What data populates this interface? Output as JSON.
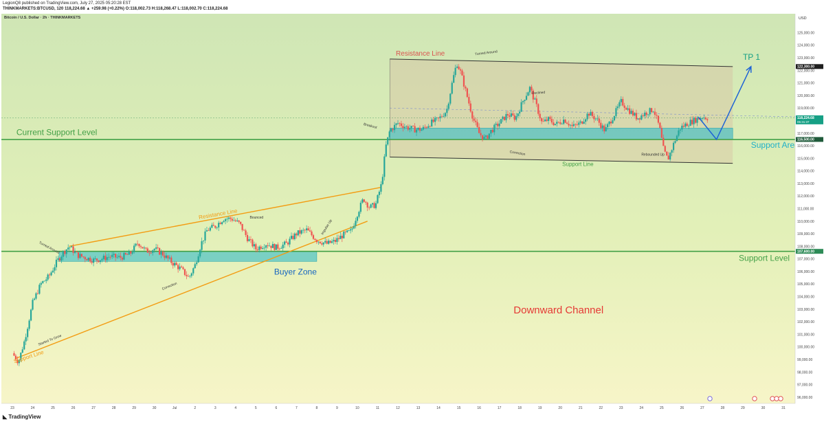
{
  "header": {
    "published": "LegionQ8 published on TradingView.com, July 27, 2025 05:20:28 EST",
    "symbol_line": "THINKMARKETS:BTCUSD, 120  118,224.68 ▲ +259.98 (+0.22%) O:118,002.73 H:118,268.47 L:118,002.70 C:118,224.68",
    "chart_title": "Bitcoin / U.S. Dollar · 2h · THINKMARKETS",
    "currency": "USD"
  },
  "footer": {
    "logo_text": "TradingView"
  },
  "chart_data": {
    "type": "candlestick",
    "title": "Bitcoin / U.S. Dollar · 2h · THINKMARKETS",
    "ylim": [
      95500,
      126500
    ],
    "y_ticks": [
      "125,000.00",
      "124,000.00",
      "123,000.00",
      "122,000.00",
      "121,000.00",
      "120,000.00",
      "119,000.00",
      "118,000.00",
      "117,000.00",
      "116,000.00",
      "115,000.00",
      "114,000.00",
      "113,000.00",
      "112,000.00",
      "111,000.00",
      "110,000.00",
      "109,000.00",
      "108,000.00",
      "107,000.00",
      "106,000.00",
      "105,000.00",
      "104,000.00",
      "103,000.00",
      "102,000.00",
      "101,000.00",
      "100,000.00",
      "99,000.00",
      "98,000.00",
      "97,000.00",
      "96,000.00"
    ],
    "x_ticks": [
      "23",
      "24",
      "25",
      "26",
      "27",
      "28",
      "29",
      "30",
      "Jul",
      "2",
      "3",
      "4",
      "5",
      "6",
      "7",
      "8",
      "9",
      "10",
      "11",
      "12",
      "13",
      "14",
      "15",
      "16",
      "17",
      "18",
      "19",
      "20",
      "21",
      "22",
      "23",
      "24",
      "25",
      "26",
      "27",
      "28",
      "29",
      "30",
      "31"
    ],
    "price_path": [
      {
        "d": 0.0,
        "p": 99500
      },
      {
        "d": 0.3,
        "p": 98800
      },
      {
        "d": 0.6,
        "p": 100500
      },
      {
        "d": 1.0,
        "p": 103500
      },
      {
        "d": 1.4,
        "p": 105000
      },
      {
        "d": 1.8,
        "p": 105600
      },
      {
        "d": 2.2,
        "p": 106800
      },
      {
        "d": 2.5,
        "p": 107500
      },
      {
        "d": 2.8,
        "p": 108000
      },
      {
        "d": 3.2,
        "p": 107300
      },
      {
        "d": 3.6,
        "p": 107100
      },
      {
        "d": 4.0,
        "p": 106900
      },
      {
        "d": 4.4,
        "p": 107000
      },
      {
        "d": 4.8,
        "p": 107200
      },
      {
        "d": 5.3,
        "p": 107100
      },
      {
        "d": 5.8,
        "p": 107400
      },
      {
        "d": 6.2,
        "p": 108300
      },
      {
        "d": 6.6,
        "p": 107600
      },
      {
        "d": 7.0,
        "p": 107800
      },
      {
        "d": 7.4,
        "p": 107400
      },
      {
        "d": 7.8,
        "p": 106800
      },
      {
        "d": 8.3,
        "p": 106200
      },
      {
        "d": 8.7,
        "p": 105500
      },
      {
        "d": 9.0,
        "p": 106500
      },
      {
        "d": 9.3,
        "p": 108200
      },
      {
        "d": 9.6,
        "p": 109300
      },
      {
        "d": 10.0,
        "p": 109600
      },
      {
        "d": 10.4,
        "p": 110200
      },
      {
        "d": 10.8,
        "p": 110200
      },
      {
        "d": 11.2,
        "p": 109800
      },
      {
        "d": 11.6,
        "p": 108600
      },
      {
        "d": 12.0,
        "p": 107800
      },
      {
        "d": 12.5,
        "p": 108200
      },
      {
        "d": 13.0,
        "p": 107900
      },
      {
        "d": 13.5,
        "p": 108200
      },
      {
        "d": 14.0,
        "p": 109000
      },
      {
        "d": 14.5,
        "p": 109300
      },
      {
        "d": 15.0,
        "p": 108500
      },
      {
        "d": 15.5,
        "p": 108200
      },
      {
        "d": 15.9,
        "p": 108400
      },
      {
        "d": 16.3,
        "p": 108900
      },
      {
        "d": 16.7,
        "p": 109200
      },
      {
        "d": 17.0,
        "p": 110600
      },
      {
        "d": 17.3,
        "p": 111800
      },
      {
        "d": 17.6,
        "p": 111100
      },
      {
        "d": 17.9,
        "p": 111300
      },
      {
        "d": 18.2,
        "p": 113000
      },
      {
        "d": 18.4,
        "p": 115900
      },
      {
        "d": 18.6,
        "p": 117200
      },
      {
        "d": 19.0,
        "p": 117800
      },
      {
        "d": 19.4,
        "p": 117500
      },
      {
        "d": 19.8,
        "p": 117300
      },
      {
        "d": 20.2,
        "p": 117300
      },
      {
        "d": 20.6,
        "p": 117800
      },
      {
        "d": 21.0,
        "p": 118100
      },
      {
        "d": 21.4,
        "p": 118800
      },
      {
        "d": 21.7,
        "p": 121200
      },
      {
        "d": 21.9,
        "p": 122600
      },
      {
        "d": 22.1,
        "p": 121800
      },
      {
        "d": 22.4,
        "p": 120000
      },
      {
        "d": 22.7,
        "p": 118200
      },
      {
        "d": 23.0,
        "p": 117000
      },
      {
        "d": 23.3,
        "p": 116500
      },
      {
        "d": 23.6,
        "p": 117200
      },
      {
        "d": 24.0,
        "p": 117800
      },
      {
        "d": 24.4,
        "p": 118500
      },
      {
        "d": 24.8,
        "p": 118200
      },
      {
        "d": 25.2,
        "p": 119700
      },
      {
        "d": 25.5,
        "p": 120600
      },
      {
        "d": 25.8,
        "p": 119300
      },
      {
        "d": 26.1,
        "p": 117800
      },
      {
        "d": 26.4,
        "p": 118100
      },
      {
        "d": 26.8,
        "p": 117700
      },
      {
        "d": 27.2,
        "p": 118100
      },
      {
        "d": 27.6,
        "p": 117500
      },
      {
        "d": 28.0,
        "p": 117800
      },
      {
        "d": 28.4,
        "p": 118600
      },
      {
        "d": 28.8,
        "p": 118100
      },
      {
        "d": 29.2,
        "p": 117200
      },
      {
        "d": 29.6,
        "p": 118300
      },
      {
        "d": 30.0,
        "p": 119500
      },
      {
        "d": 30.4,
        "p": 118800
      },
      {
        "d": 30.8,
        "p": 118200
      },
      {
        "d": 31.2,
        "p": 118600
      },
      {
        "d": 31.6,
        "p": 118900
      },
      {
        "d": 31.9,
        "p": 117400
      },
      {
        "d": 32.1,
        "p": 115600
      },
      {
        "d": 32.3,
        "p": 114900
      },
      {
        "d": 32.6,
        "p": 116200
      },
      {
        "d": 32.9,
        "p": 117400
      },
      {
        "d": 33.3,
        "p": 117800
      },
      {
        "d": 33.7,
        "p": 118100
      },
      {
        "d": 34.0,
        "p": 118300
      },
      {
        "d": 34.3,
        "p": 118200
      }
    ],
    "levels": [
      {
        "name": "Current Support Level",
        "value": 116500
      },
      {
        "name": "Support Level",
        "value": 107600
      }
    ],
    "zones": [
      {
        "label": "Buyer Zone",
        "x": [
          2.3,
          15.0
        ],
        "y": [
          106800,
          107600
        ]
      },
      {
        "label": "Support Area",
        "x": [
          18.6,
          35.5
        ],
        "y": [
          116500,
          117400
        ]
      }
    ],
    "channels": [
      {
        "label": "Downward Channel",
        "resistance": [
          [
            18.6,
            122900
          ],
          [
            35.5,
            122300
          ]
        ],
        "support": [
          [
            18.6,
            115100
          ],
          [
            35.5,
            114600
          ]
        ]
      }
    ],
    "ascending_channel": {
      "resistance": [
        [
          2.8,
          108000
        ],
        [
          18.2,
          112700
        ]
      ],
      "support": [
        [
          0.2,
          99100
        ],
        [
          17.5,
          110000
        ]
      ]
    },
    "projection": {
      "label": "TP 1",
      "path": [
        [
          33.8,
          118300
        ],
        [
          34.7,
          116500
        ],
        [
          36.4,
          122300
        ]
      ]
    },
    "price_tags": [
      {
        "text": "122,300.00",
        "value": 122300,
        "bg": "#1f1f1f"
      },
      {
        "text": "118,224.68",
        "value": 118224.68,
        "bg": "#16a085",
        "extra": "05:31:37"
      },
      {
        "text": "116,500.00",
        "value": 116500,
        "bg": "#1f5a3a"
      },
      {
        "text": "107,600.00",
        "value": 107600,
        "bg": "#2e8b57"
      }
    ],
    "annotations": [
      {
        "text": "Resistance Line",
        "color": "#d9534f",
        "size": 10,
        "x": 18.9,
        "y": 123160,
        "rot": 0
      },
      {
        "text": "Turned Around",
        "color": "#333",
        "size": 5,
        "x": 22.8,
        "y": 123200,
        "rot": -7
      },
      {
        "text": "Declined",
        "color": "#333",
        "size": 5,
        "x": 25.6,
        "y": 120100,
        "rot": -4
      },
      {
        "text": "Breakout",
        "color": "#333",
        "size": 5,
        "x": 17.3,
        "y": 117650,
        "rot": 15
      },
      {
        "text": "Correction",
        "color": "#333",
        "size": 5,
        "x": 24.5,
        "y": 115450,
        "rot": 10
      },
      {
        "text": "Rebounded Up",
        "color": "#333",
        "size": 5,
        "x": 31.0,
        "y": 115200,
        "rot": 0
      },
      {
        "text": "Support Line",
        "color": "#43a047",
        "size": 8,
        "x": 27.1,
        "y": 114380,
        "rot": 0
      },
      {
        "text": "Support Area",
        "color": "#1fb0c8",
        "size": 12,
        "x": 36.4,
        "y": 115850,
        "rot": 0
      },
      {
        "text": "TP 1",
        "color": "#16a085",
        "size": 12,
        "x": 36.0,
        "y": 122850,
        "rot": 0
      },
      {
        "text": "Current Support Level",
        "color": "#43a047",
        "size": 12,
        "x": 0.2,
        "y": 116850,
        "rot": 0
      },
      {
        "text": "Support Level",
        "color": "#43a047",
        "size": 12,
        "x": 35.8,
        "y": 106850,
        "rot": 0
      },
      {
        "text": "Buyer Zone",
        "color": "#1565c0",
        "size": 12,
        "x": 12.9,
        "y": 105760,
        "rot": 0
      },
      {
        "text": "Downward Channel",
        "color": "#e53935",
        "size": 15,
        "x": 24.7,
        "y": 102650,
        "rot": 0
      },
      {
        "text": "Resistance Line",
        "color": "#f39c12",
        "size": 8,
        "x": 9.2,
        "y": 110150,
        "rot": -10
      },
      {
        "text": "Bounced",
        "color": "#333",
        "size": 5,
        "x": 11.7,
        "y": 110200,
        "rot": 0
      },
      {
        "text": "Turned Around",
        "color": "#333",
        "size": 5,
        "x": 1.3,
        "y": 108250,
        "rot": 28
      },
      {
        "text": "Impulse Up",
        "color": "#333",
        "size": 5,
        "x": 15.3,
        "y": 108900,
        "rot": -58
      },
      {
        "text": "Correction",
        "color": "#333",
        "size": 5,
        "x": 7.4,
        "y": 104520,
        "rot": -22
      },
      {
        "text": "Started To Grow",
        "color": "#333",
        "size": 5,
        "x": 1.3,
        "y": 100100,
        "rot": -22
      },
      {
        "text": "Support Line",
        "color": "#f39c12",
        "size": 8,
        "x": 0.1,
        "y": 98700,
        "rot": -18
      }
    ]
  }
}
